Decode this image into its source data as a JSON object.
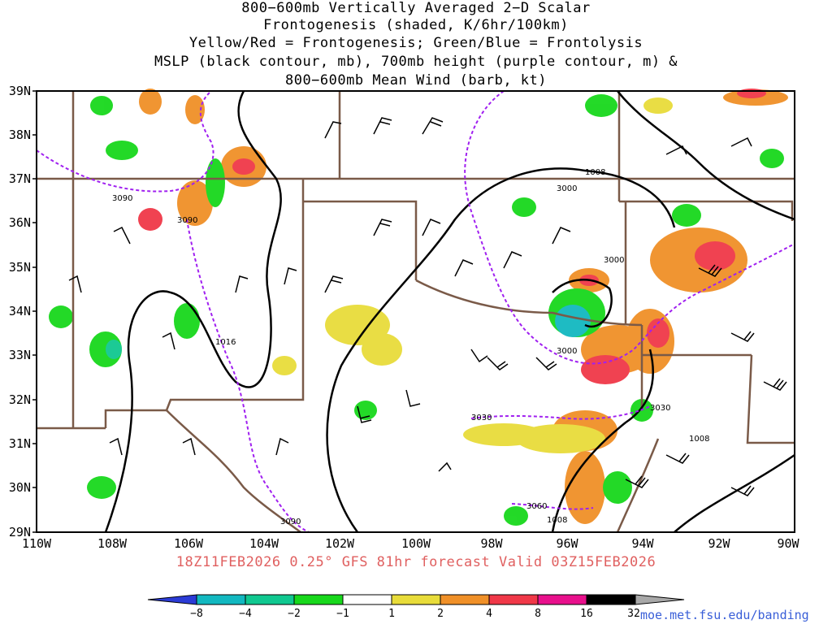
{
  "title": {
    "line1": "800−600mb Vertically Averaged 2−D Scalar",
    "line2": "Frontogenesis (shaded, K/6hr/100km)",
    "line3": "Yellow/Red = Frontogenesis;  Green/Blue = Frontolysis",
    "line4": "MSLP (black contour, mb), 700mb height (purple contour, m) &",
    "line5": "800−600mb Mean Wind (barb, kt)"
  },
  "axes": {
    "lat_labels": [
      "39N",
      "38N",
      "37N",
      "36N",
      "35N",
      "34N",
      "33N",
      "32N",
      "31N",
      "30N",
      "29N"
    ],
    "lon_labels": [
      "110W",
      "108W",
      "106W",
      "104W",
      "102W",
      "100W",
      "98W",
      "96W",
      "94W",
      "92W",
      "90W"
    ]
  },
  "run_info": "18Z11FEB2026 0.25° GFS 81hr forecast Valid 03Z15FEB2026",
  "colorbar": {
    "labels": [
      "−8",
      "−4",
      "−2",
      "−1",
      "1",
      "2",
      "4",
      "8",
      "16",
      "32"
    ],
    "colors": [
      "#2b3bd6",
      "#12b8c0",
      "#10c890",
      "#18d81c",
      "#ffffff",
      "#e8dc3a",
      "#f09028",
      "#f03848",
      "#e8108c",
      "#000000",
      "#a8a8a8"
    ]
  },
  "contour_labels": {
    "mslp": [
      "1008",
      "1016",
      "1008",
      "1008"
    ],
    "height": [
      "3090",
      "3090",
      "3000",
      "3000",
      "3000",
      "3030",
      "3030",
      "3060",
      "3090"
    ]
  },
  "url": "moe.met.fsu.edu/banding"
}
